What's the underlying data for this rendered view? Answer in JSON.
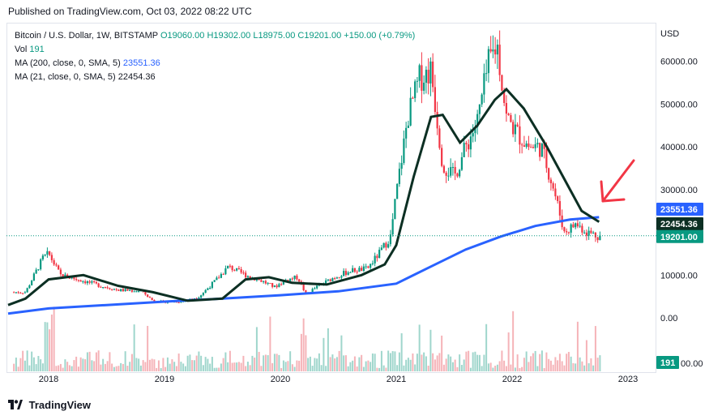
{
  "published": "Published on TradingView.com, Oct 03, 2022 08:22 UTC",
  "legend": {
    "symbol": "Bitcoin / U.S. Dollar, 1W, BITSTAMP",
    "open": "O19060.00",
    "high": "H19302.00",
    "low": "L18975.00",
    "close": "C19201.00",
    "change": "+150.00 (+0.79%)",
    "vol_label": "Vol",
    "vol_value": "191",
    "ma200_label": "MA (200, close, 0, SMA, 5)",
    "ma200_value": "23551.36",
    "ma21_label": "MA (21, close, 0, SMA, 5)",
    "ma21_value": "22454.36"
  },
  "currency": "USD",
  "footer": "TradingView",
  "colors": {
    "up": "#089981",
    "down": "#f23645",
    "ma200": "#2962ff",
    "ma21": "#0c2f23",
    "arrow": "#f23645"
  },
  "price_badges": {
    "ma200": "23551.36",
    "ma21": "22454.36",
    "last": "19201.00",
    "volume": "191"
  },
  "chart_data": {
    "type": "candlestick",
    "title": "Bitcoin / U.S. Dollar, 1W, BITSTAMP",
    "ylim": [
      0,
      70000
    ],
    "y_ticks": [
      "60000.00",
      "50000.00",
      "40000.00",
      "30000.00",
      "10000.00",
      "0.00"
    ],
    "x_ticks": [
      "2018",
      "2019",
      "2020",
      "2021",
      "2022",
      "2023"
    ],
    "grid": false,
    "last_price": 19201,
    "volume_axis_label": "00.00",
    "price_series": {
      "name": "BTC/USD close (approx.)",
      "x": [
        2017.8,
        2017.95,
        2018.0,
        2018.1,
        2018.25,
        2018.45,
        2018.6,
        2018.8,
        2018.9,
        2019.0,
        2019.15,
        2019.3,
        2019.45,
        2019.55,
        2019.7,
        2019.85,
        2019.95,
        2020.05,
        2020.15,
        2020.22,
        2020.3,
        2020.45,
        2020.6,
        2020.75,
        2020.85,
        2020.95,
        2021.0,
        2021.1,
        2021.2,
        2021.3,
        2021.4,
        2021.5,
        2021.6,
        2021.7,
        2021.8,
        2021.87,
        2021.95,
        2022.05,
        2022.15,
        2022.25,
        2022.35,
        2022.45,
        2022.55,
        2022.65,
        2022.75
      ],
      "y": [
        6000,
        14000,
        15000,
        10000,
        9000,
        7500,
        6500,
        6300,
        4000,
        3700,
        3800,
        5000,
        9000,
        12000,
        10000,
        8500,
        7200,
        8900,
        9500,
        5500,
        7000,
        9300,
        11000,
        11500,
        15000,
        19000,
        29000,
        47000,
        56000,
        58000,
        36000,
        33000,
        40000,
        46000,
        60000,
        64000,
        47000,
        43000,
        40000,
        40000,
        31000,
        20000,
        22000,
        20000,
        19201
      ]
    },
    "series": [
      {
        "name": "MA (200, close, 0, SMA, 5)",
        "x": [
          2017.65,
          2018.0,
          2018.5,
          2019.0,
          2019.5,
          2020.0,
          2020.5,
          2021.0,
          2021.3,
          2021.6,
          2021.9,
          2022.2,
          2022.5,
          2022.75
        ],
        "y": [
          1000,
          2200,
          3000,
          3800,
          4500,
          5300,
          6200,
          8000,
          12000,
          16000,
          19000,
          21500,
          23000,
          23551.36
        ]
      },
      {
        "name": "MA (21, close, 0, SMA, 5)",
        "x": [
          2017.65,
          2017.8,
          2018.0,
          2018.3,
          2018.6,
          2018.9,
          2019.2,
          2019.5,
          2019.7,
          2019.9,
          2020.1,
          2020.4,
          2020.7,
          2020.9,
          2021.0,
          2021.15,
          2021.3,
          2021.4,
          2021.55,
          2021.7,
          2021.85,
          2021.95,
          2022.1,
          2022.3,
          2022.5,
          2022.6,
          2022.75
        ],
        "y": [
          3000,
          4500,
          9000,
          10000,
          7500,
          6000,
          4000,
          4500,
          9000,
          9500,
          8200,
          7800,
          10000,
          12500,
          17000,
          33000,
          47000,
          47500,
          41000,
          45000,
          51000,
          53500,
          49000,
          40000,
          30000,
          25000,
          22454.36
        ]
      }
    ]
  }
}
